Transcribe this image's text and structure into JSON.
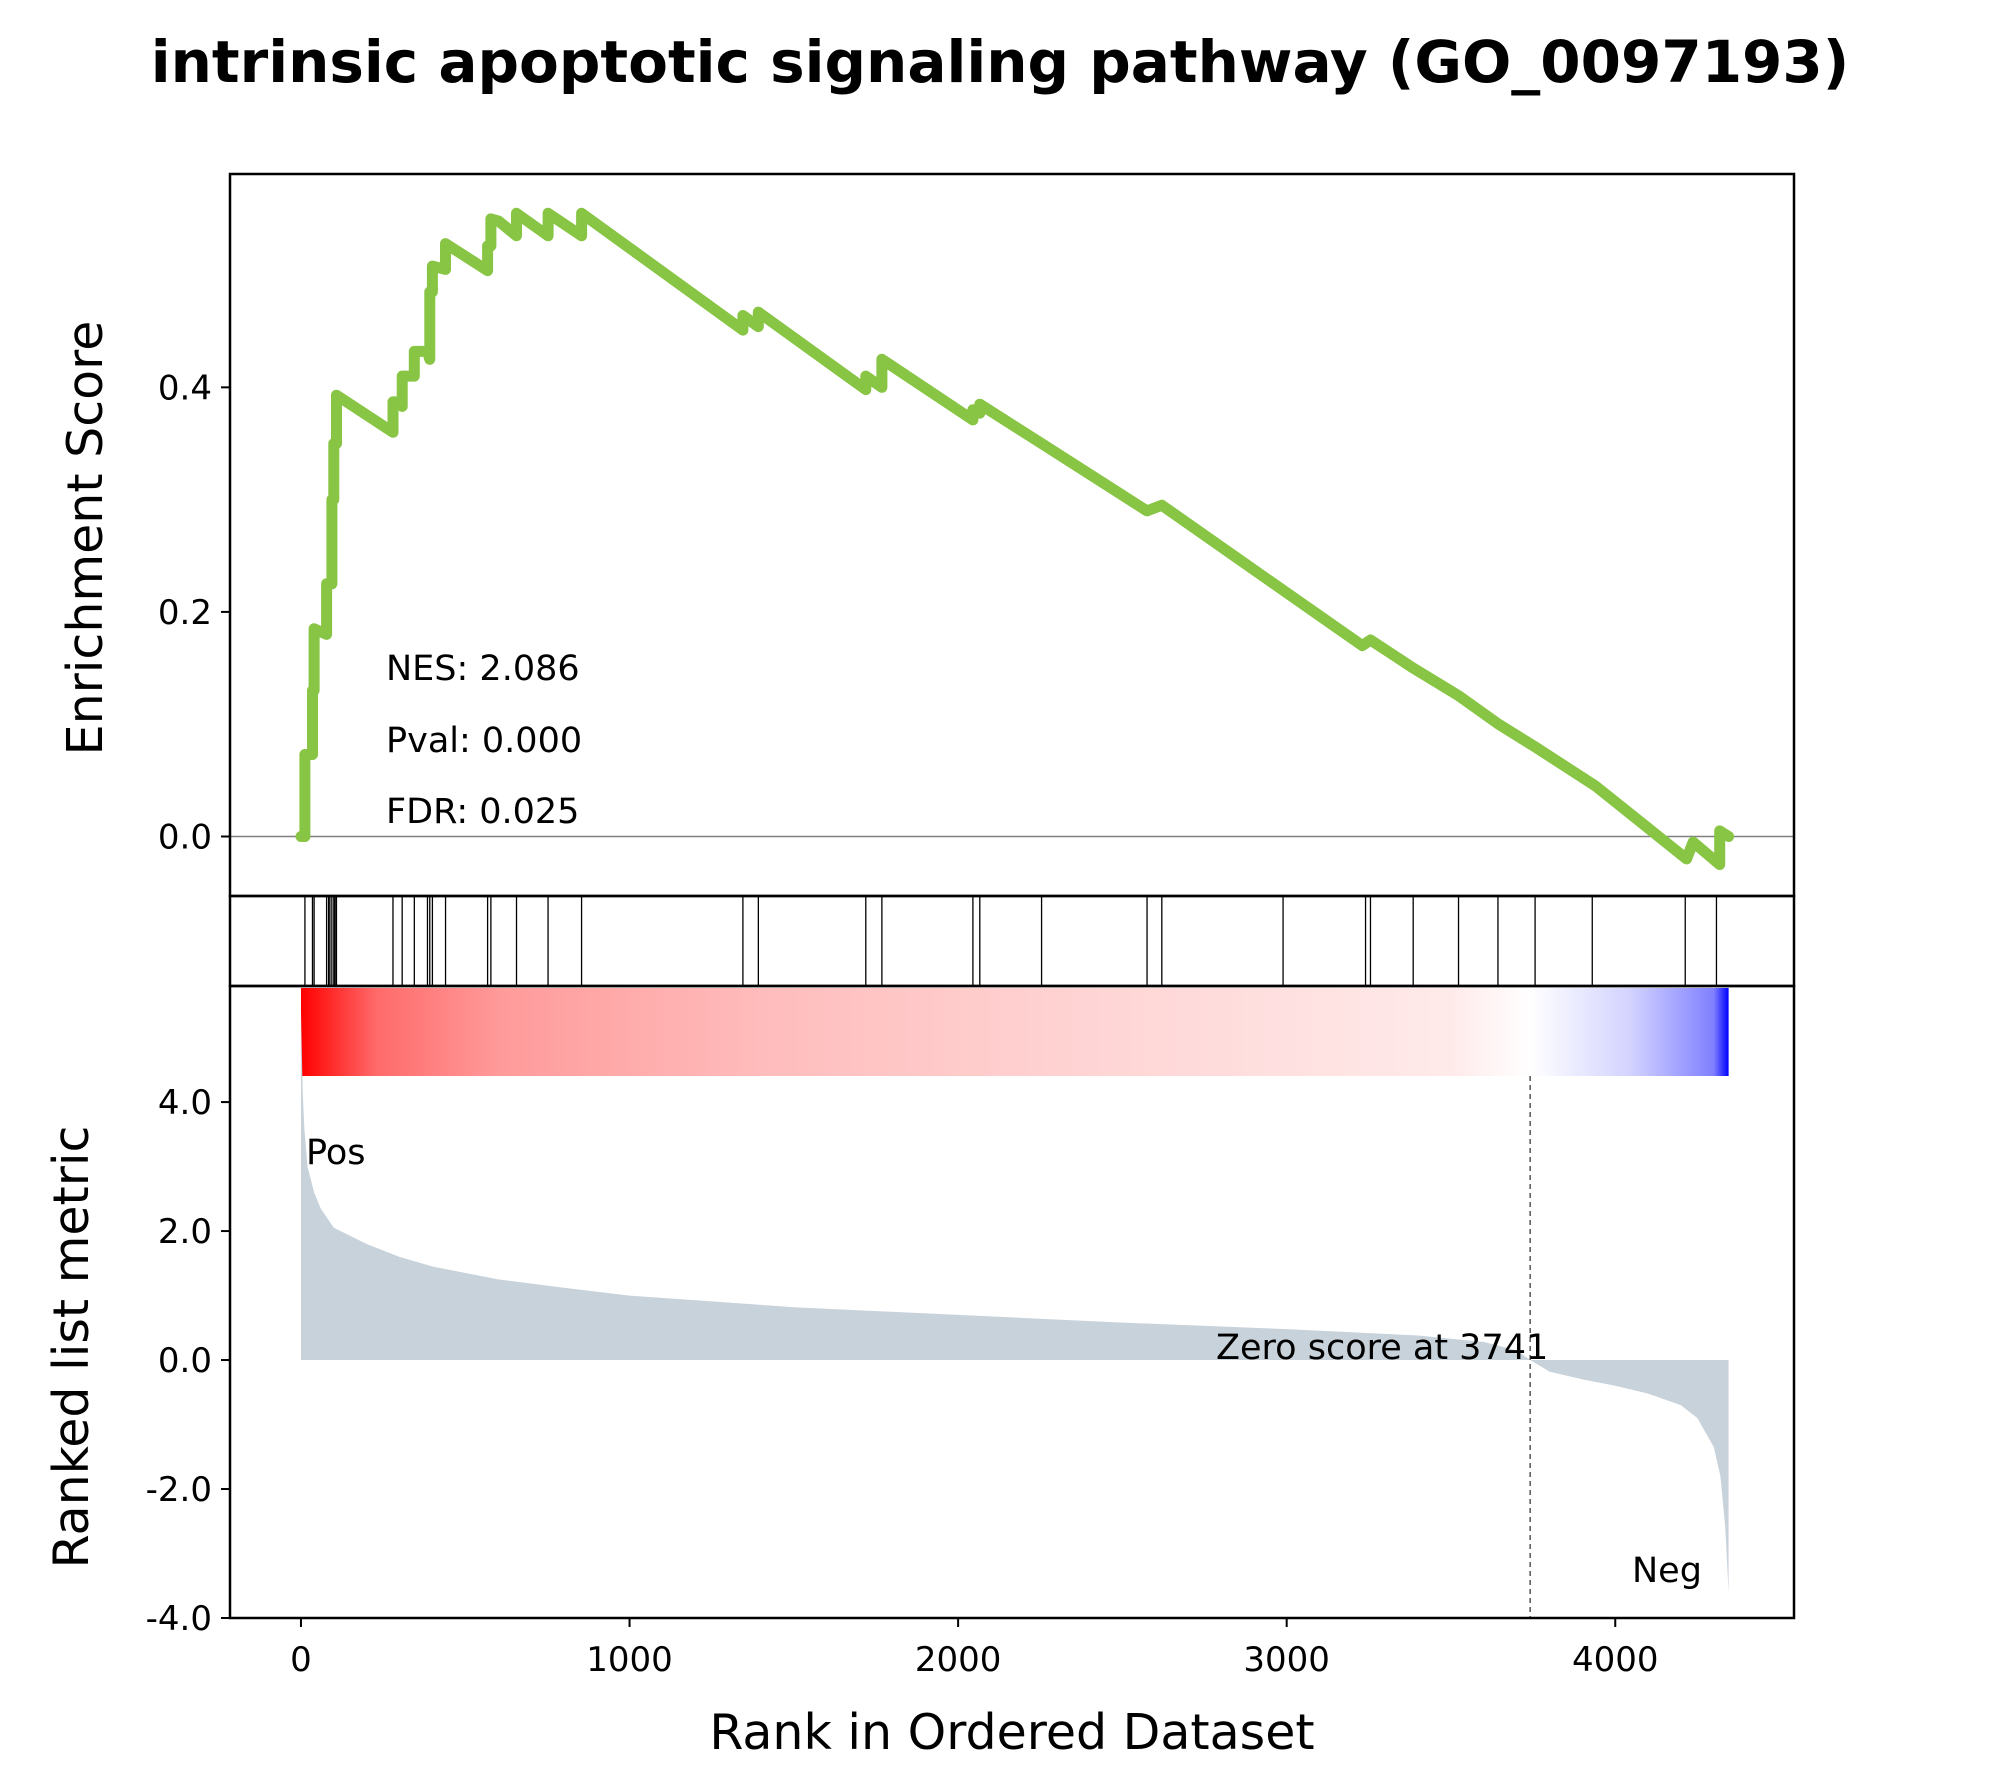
{
  "chart_data": {
    "type": "line",
    "title": "intrinsic apoptotic signaling pathway (GO_0097193)",
    "xlabel": "Rank in Ordered Dataset",
    "xlim": [
      -216,
      4544
    ],
    "x_ticks": [
      0,
      1000,
      2000,
      3000,
      4000
    ],
    "enrichment": {
      "ylabel": "Enrichment Score",
      "ylim": [
        -0.053,
        0.59
      ],
      "y_ticks": [
        0.0,
        0.2,
        0.4
      ],
      "y_tick_labels": [
        "0.0",
        "0.2",
        "0.4"
      ],
      "color": "#88c544",
      "baseline_color": "#808080",
      "stats": {
        "nes_label": "NES: 2.086",
        "pval_label": "Pval: 0.000",
        "fdr_label": "FDR: 0.025"
      },
      "points": [
        [
          0,
          0.0
        ],
        [
          12,
          0.0
        ],
        [
          12,
          0.073
        ],
        [
          35,
          0.073
        ],
        [
          35,
          0.13
        ],
        [
          40,
          0.13
        ],
        [
          40,
          0.185
        ],
        [
          78,
          0.18
        ],
        [
          78,
          0.225
        ],
        [
          94,
          0.225
        ],
        [
          94,
          0.3
        ],
        [
          100,
          0.3
        ],
        [
          100,
          0.35
        ],
        [
          108,
          0.35
        ],
        [
          108,
          0.393
        ],
        [
          280,
          0.36
        ],
        [
          280,
          0.387
        ],
        [
          300,
          0.387
        ],
        [
          308,
          0.383
        ],
        [
          308,
          0.41
        ],
        [
          338,
          0.41
        ],
        [
          345,
          0.41
        ],
        [
          345,
          0.432
        ],
        [
          385,
          0.432
        ],
        [
          392,
          0.425
        ],
        [
          392,
          0.485
        ],
        [
          400,
          0.485
        ],
        [
          400,
          0.508
        ],
        [
          440,
          0.505
        ],
        [
          440,
          0.528
        ],
        [
          568,
          0.504
        ],
        [
          568,
          0.526
        ],
        [
          578,
          0.526
        ],
        [
          578,
          0.55
        ],
        [
          602,
          0.548
        ],
        [
          656,
          0.535
        ],
        [
          656,
          0.555
        ],
        [
          752,
          0.535
        ],
        [
          752,
          0.555
        ],
        [
          854,
          0.535
        ],
        [
          854,
          0.555
        ],
        [
          1345,
          0.451
        ],
        [
          1345,
          0.464
        ],
        [
          1392,
          0.454
        ],
        [
          1392,
          0.467
        ],
        [
          1719,
          0.398
        ],
        [
          1719,
          0.41
        ],
        [
          1768,
          0.4
        ],
        [
          1768,
          0.425
        ],
        [
          2045,
          0.371
        ],
        [
          2045,
          0.38
        ],
        [
          2066,
          0.377
        ],
        [
          2066,
          0.385
        ],
        [
          2254,
          0.35
        ],
        [
          2575,
          0.29
        ],
        [
          2620,
          0.295
        ],
        [
          3000,
          0.217
        ],
        [
          3230,
          0.17
        ],
        [
          3255,
          0.175
        ],
        [
          3385,
          0.15
        ],
        [
          3525,
          0.125
        ],
        [
          3645,
          0.1
        ],
        [
          3755,
          0.08
        ],
        [
          3940,
          0.045
        ],
        [
          4217,
          -0.02
        ],
        [
          4237,
          -0.005
        ],
        [
          4318,
          -0.025
        ],
        [
          4318,
          0.005
        ],
        [
          4345,
          0.0
        ]
      ]
    },
    "hits": [
      12,
      35,
      40,
      78,
      84,
      88,
      94,
      100,
      104,
      108,
      280,
      308,
      345,
      385,
      392,
      400,
      440,
      568,
      578,
      656,
      752,
      854,
      1345,
      1392,
      1719,
      1768,
      2045,
      2066,
      2254,
      2575,
      2620,
      2989,
      3240,
      3255,
      3385,
      3523,
      3643,
      3756,
      3930,
      4213,
      4308
    ],
    "heatmap": {
      "gradient_stops": [
        {
          "rank": 0,
          "color": "#ff0000"
        },
        {
          "rank": 230,
          "color": "#ff6a6a"
        },
        {
          "rank": 600,
          "color": "#ff9a9a"
        },
        {
          "rank": 1400,
          "color": "#ffbcbc"
        },
        {
          "rank": 2400,
          "color": "#ffd4d4"
        },
        {
          "rank": 3500,
          "color": "#ffeaea"
        },
        {
          "rank": 3741,
          "color": "#ffffff"
        },
        {
          "rank": 4050,
          "color": "#d2d2ff"
        },
        {
          "rank": 4300,
          "color": "#8080ff"
        },
        {
          "rank": 4345,
          "color": "#0000ff"
        }
      ]
    },
    "ranked_metric": {
      "ylabel": "Ranked list metric",
      "ylim": [
        -4.0,
        5.8
      ],
      "y_ticks": [
        -4.0,
        -2.0,
        0.0,
        2.0,
        4.0
      ],
      "y_tick_labels": [
        "-4.0",
        "-2.0",
        "0.0",
        "2.0",
        "4.0"
      ],
      "fill_color": "#c8d2da",
      "pos_label": "Pos",
      "neg_label": "Neg",
      "pos_color": "#ff0000",
      "neg_color": "#0000ff",
      "zero_score_label": "Zero score at 3741",
      "zero_rank": 3741,
      "points": [
        [
          0,
          5.4
        ],
        [
          5,
          4.2
        ],
        [
          10,
          3.6
        ],
        [
          20,
          3.0
        ],
        [
          40,
          2.6
        ],
        [
          60,
          2.35
        ],
        [
          100,
          2.05
        ],
        [
          200,
          1.8
        ],
        [
          300,
          1.6
        ],
        [
          400,
          1.45
        ],
        [
          600,
          1.25
        ],
        [
          800,
          1.12
        ],
        [
          1000,
          1.0
        ],
        [
          1500,
          0.82
        ],
        [
          2000,
          0.7
        ],
        [
          2500,
          0.58
        ],
        [
          3000,
          0.48
        ],
        [
          3400,
          0.38
        ],
        [
          3600,
          0.28
        ],
        [
          3700,
          0.15
        ],
        [
          3741,
          0.0
        ],
        [
          3800,
          -0.18
        ],
        [
          3900,
          -0.3
        ],
        [
          4000,
          -0.4
        ],
        [
          4100,
          -0.52
        ],
        [
          4200,
          -0.7
        ],
        [
          4250,
          -0.9
        ],
        [
          4300,
          -1.35
        ],
        [
          4320,
          -1.8
        ],
        [
          4335,
          -2.6
        ],
        [
          4345,
          -3.6
        ]
      ]
    }
  }
}
